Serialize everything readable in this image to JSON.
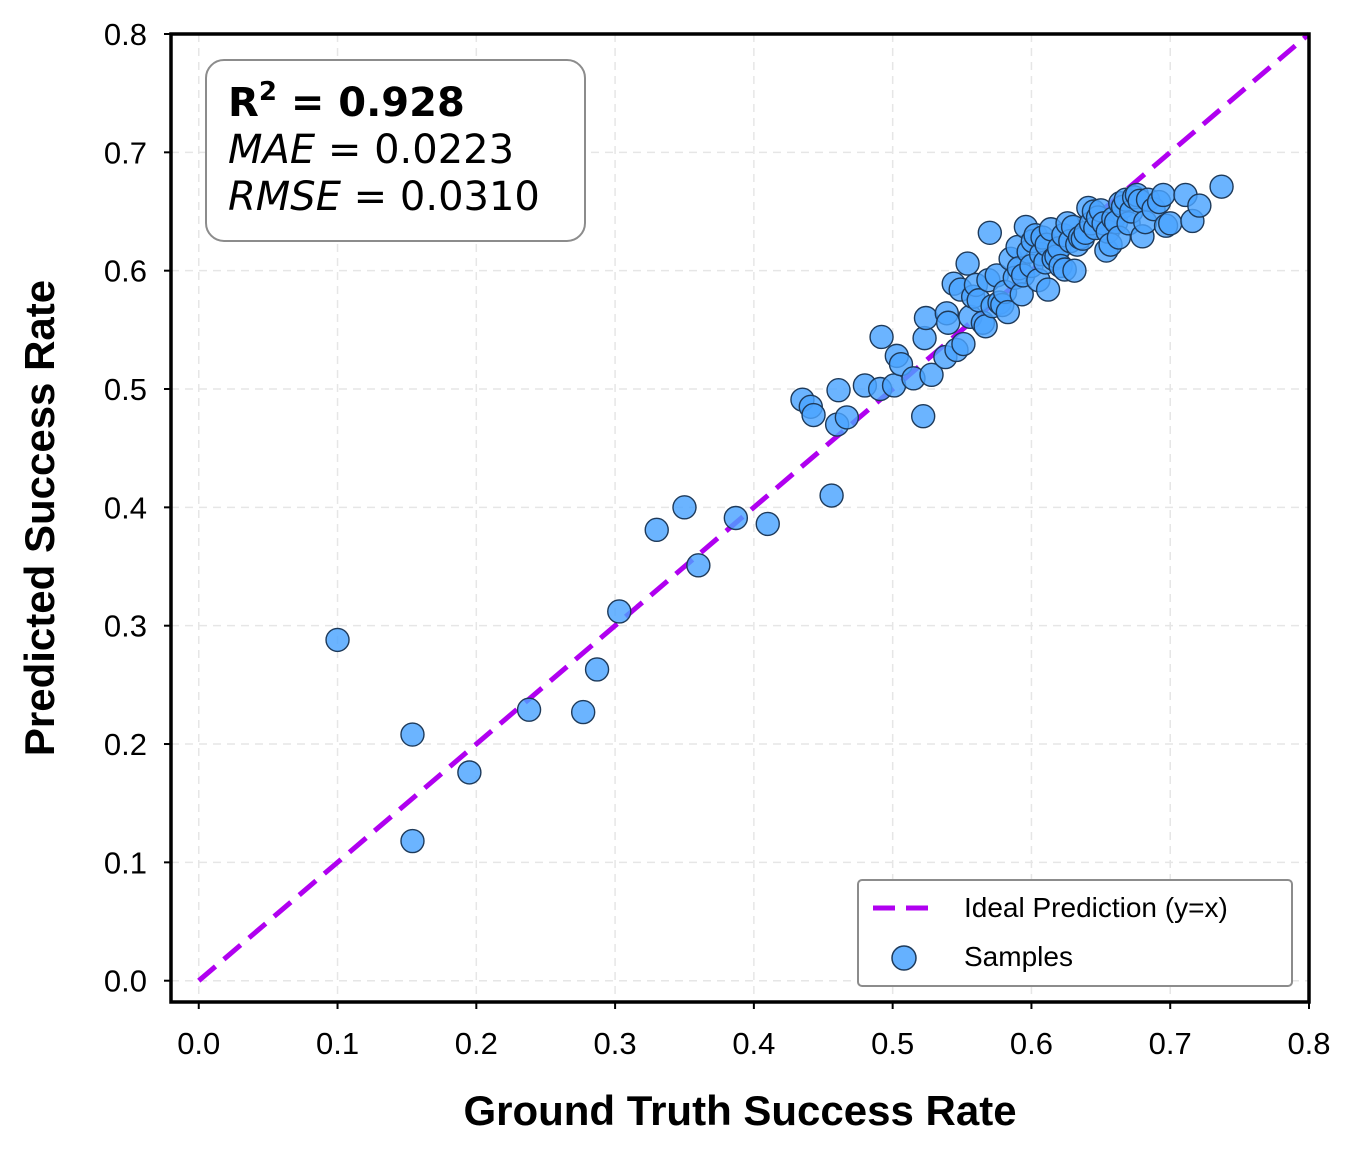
{
  "chart_data": {
    "type": "scatter",
    "xlabel": "Ground Truth Success Rate",
    "ylabel": "Predicted Success Rate",
    "xlim": [
      -0.02,
      0.8
    ],
    "ylim": [
      -0.018,
      0.8
    ],
    "xticks": [
      "0.0",
      "0.1",
      "0.2",
      "0.3",
      "0.4",
      "0.5",
      "0.6",
      "0.7",
      "0.8"
    ],
    "yticks": [
      "0.0",
      "0.1",
      "0.2",
      "0.3",
      "0.4",
      "0.5",
      "0.6",
      "0.7",
      "0.8"
    ],
    "grid": true,
    "stats": {
      "r2_label": "R",
      "r2_exp": "2",
      "r2_value": " = 0.928",
      "mae_label": "MAE",
      "mae_value": " = 0.0223",
      "rmse_label": "RMSE",
      "rmse_value": " = 0.0310"
    },
    "legend": {
      "position": "lower-right",
      "entries": [
        "Ideal Prediction (y=x)",
        "Samples"
      ]
    },
    "colors": {
      "ideal_line": "#b000f0",
      "points": "#4aa3ff",
      "point_edge": "#1e3a5a"
    },
    "ideal_line": {
      "x": [
        0.0,
        0.8
      ],
      "y": [
        0.0,
        0.8
      ]
    },
    "series": [
      {
        "name": "Samples",
        "points": [
          [
            0.1,
            0.288
          ],
          [
            0.154,
            0.208
          ],
          [
            0.154,
            0.118
          ],
          [
            0.195,
            0.176
          ],
          [
            0.238,
            0.229
          ],
          [
            0.277,
            0.227
          ],
          [
            0.287,
            0.263
          ],
          [
            0.303,
            0.312
          ],
          [
            0.33,
            0.381
          ],
          [
            0.35,
            0.4
          ],
          [
            0.36,
            0.351
          ],
          [
            0.387,
            0.391
          ],
          [
            0.41,
            0.386
          ],
          [
            0.435,
            0.491
          ],
          [
            0.441,
            0.485
          ],
          [
            0.443,
            0.478
          ],
          [
            0.456,
            0.41
          ],
          [
            0.46,
            0.47
          ],
          [
            0.461,
            0.499
          ],
          [
            0.467,
            0.476
          ],
          [
            0.48,
            0.503
          ],
          [
            0.491,
            0.5
          ],
          [
            0.492,
            0.544
          ],
          [
            0.501,
            0.503
          ],
          [
            0.503,
            0.528
          ],
          [
            0.506,
            0.521
          ],
          [
            0.515,
            0.509
          ],
          [
            0.522,
            0.477
          ],
          [
            0.523,
            0.543
          ],
          [
            0.524,
            0.56
          ],
          [
            0.528,
            0.512
          ],
          [
            0.538,
            0.527
          ],
          [
            0.539,
            0.564
          ],
          [
            0.54,
            0.556
          ],
          [
            0.544,
            0.589
          ],
          [
            0.546,
            0.533
          ],
          [
            0.549,
            0.584
          ],
          [
            0.551,
            0.538
          ],
          [
            0.554,
            0.606
          ],
          [
            0.556,
            0.561
          ],
          [
            0.558,
            0.578
          ],
          [
            0.56,
            0.588
          ],
          [
            0.562,
            0.575
          ],
          [
            0.565,
            0.556
          ],
          [
            0.567,
            0.553
          ],
          [
            0.569,
            0.592
          ],
          [
            0.57,
            0.632
          ],
          [
            0.572,
            0.57
          ],
          [
            0.575,
            0.596
          ],
          [
            0.577,
            0.573
          ],
          [
            0.579,
            0.571
          ],
          [
            0.581,
            0.582
          ],
          [
            0.583,
            0.565
          ],
          [
            0.585,
            0.61
          ],
          [
            0.588,
            0.594
          ],
          [
            0.59,
            0.62
          ],
          [
            0.591,
            0.602
          ],
          [
            0.593,
            0.58
          ],
          [
            0.594,
            0.596
          ],
          [
            0.596,
            0.637
          ],
          [
            0.598,
            0.616
          ],
          [
            0.6,
            0.604
          ],
          [
            0.601,
            0.625
          ],
          [
            0.603,
            0.63
          ],
          [
            0.605,
            0.592
          ],
          [
            0.607,
            0.614
          ],
          [
            0.608,
            0.628
          ],
          [
            0.61,
            0.607
          ],
          [
            0.611,
            0.622
          ],
          [
            0.612,
            0.584
          ],
          [
            0.614,
            0.635
          ],
          [
            0.616,
            0.61
          ],
          [
            0.618,
            0.612
          ],
          [
            0.62,
            0.619
          ],
          [
            0.621,
            0.604
          ],
          [
            0.623,
            0.63
          ],
          [
            0.624,
            0.601
          ],
          [
            0.626,
            0.64
          ],
          [
            0.628,
            0.625
          ],
          [
            0.63,
            0.637
          ],
          [
            0.631,
            0.6
          ],
          [
            0.633,
            0.622
          ],
          [
            0.635,
            0.628
          ],
          [
            0.637,
            0.627
          ],
          [
            0.639,
            0.632
          ],
          [
            0.641,
            0.653
          ],
          [
            0.643,
            0.64
          ],
          [
            0.645,
            0.65
          ],
          [
            0.646,
            0.636
          ],
          [
            0.648,
            0.645
          ],
          [
            0.65,
            0.651
          ],
          [
            0.652,
            0.64
          ],
          [
            0.654,
            0.617
          ],
          [
            0.655,
            0.633
          ],
          [
            0.657,
            0.622
          ],
          [
            0.659,
            0.644
          ],
          [
            0.661,
            0.641
          ],
          [
            0.663,
            0.628
          ],
          [
            0.664,
            0.657
          ],
          [
            0.666,
            0.654
          ],
          [
            0.668,
            0.66
          ],
          [
            0.67,
            0.64
          ],
          [
            0.672,
            0.65
          ],
          [
            0.674,
            0.662
          ],
          [
            0.676,
            0.664
          ],
          [
            0.678,
            0.659
          ],
          [
            0.68,
            0.629
          ],
          [
            0.682,
            0.641
          ],
          [
            0.684,
            0.66
          ],
          [
            0.688,
            0.652
          ],
          [
            0.692,
            0.658
          ],
          [
            0.695,
            0.664
          ],
          [
            0.697,
            0.638
          ],
          [
            0.7,
            0.64
          ],
          [
            0.711,
            0.664
          ],
          [
            0.716,
            0.642
          ],
          [
            0.721,
            0.655
          ],
          [
            0.737,
            0.671
          ]
        ]
      }
    ]
  }
}
